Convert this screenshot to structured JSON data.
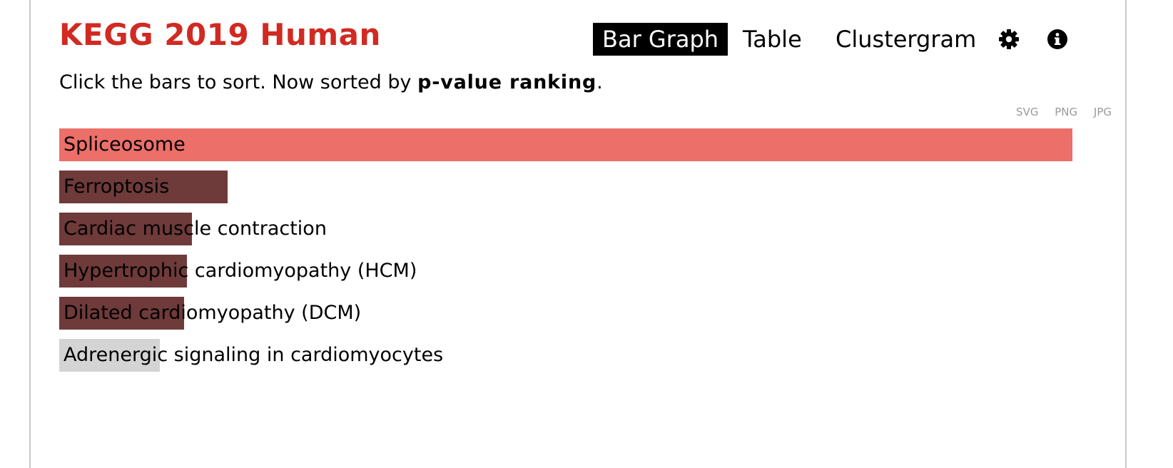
{
  "header": {
    "title": "KEGG 2019 Human",
    "tabs": [
      {
        "label": "Bar Graph",
        "active": true
      },
      {
        "label": "Table",
        "active": false
      },
      {
        "label": "Clustergram",
        "active": false
      }
    ],
    "icons": [
      "gear-icon",
      "info-icon"
    ]
  },
  "subtitle": {
    "prefix": "Click the bars to sort. Now sorted by ",
    "sort_key": "p-value ranking",
    "suffix": "."
  },
  "export_links": [
    "SVG",
    "PNG",
    "JPG"
  ],
  "colors": {
    "title": "#d02a22",
    "top_bar": "#ec6f6a",
    "mid_bar": "#6f3a3a",
    "low_bar": "#d4d4d4"
  },
  "chart_data": {
    "type": "bar",
    "orientation": "horizontal",
    "categories": [
      "Spliceosome",
      "Ferroptosis",
      "Cardiac muscle contraction",
      "Hypertrophic cardiomyopathy (HCM)",
      "Dilated cardiomyopathy (DCM)",
      "Adrenergic signaling in cardiomyocytes"
    ],
    "values": [
      1.0,
      0.166,
      0.131,
      0.126,
      0.123,
      0.099
    ],
    "bar_colors": [
      "#ec6f6a",
      "#6f3a3a",
      "#6f3a3a",
      "#6f3a3a",
      "#6f3a3a",
      "#d4d4d4"
    ],
    "title": "",
    "xlabel": "",
    "ylabel": "",
    "xlim": [
      0,
      1
    ]
  }
}
